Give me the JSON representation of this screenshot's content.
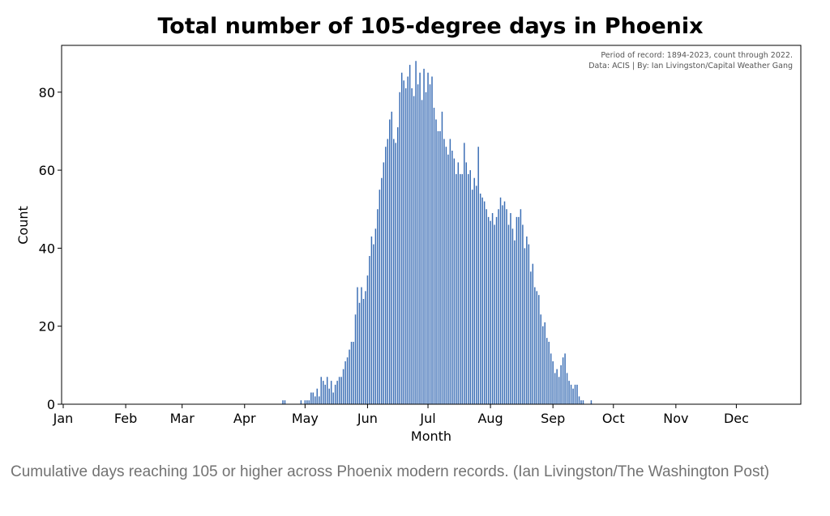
{
  "chart_data": {
    "type": "bar",
    "title": "Total number of 105-degree days in Phoenix",
    "annotation_lines": [
      "Period of record: 1894-2023, count through 2022.",
      "Data: ACIS | By: Ian Livingston/Capital Weather Gang"
    ],
    "xlabel": "Month",
    "ylabel": "Count",
    "ylim": [
      0,
      92
    ],
    "yticks": [
      0,
      20,
      40,
      60,
      80
    ],
    "xlim": [
      1,
      367
    ],
    "xticks": [
      {
        "day": 1,
        "label": "Jan"
      },
      {
        "day": 32,
        "label": "Feb"
      },
      {
        "day": 60,
        "label": "Mar"
      },
      {
        "day": 91,
        "label": "Apr"
      },
      {
        "day": 121,
        "label": "May"
      },
      {
        "day": 152,
        "label": "Jun"
      },
      {
        "day": 182,
        "label": "Jul"
      },
      {
        "day": 213,
        "label": "Aug"
      },
      {
        "day": 244,
        "label": "Sep"
      },
      {
        "day": 274,
        "label": "Oct"
      },
      {
        "day": 305,
        "label": "Nov"
      },
      {
        "day": 335,
        "label": "Dec"
      }
    ],
    "grid": false,
    "bar_color": "#3b6eb5",
    "series": [
      {
        "start_day": 110,
        "values": [
          1,
          1,
          0,
          0,
          0,
          0,
          0,
          0,
          0,
          1,
          0,
          1,
          1,
          1,
          3,
          3,
          2,
          4,
          2,
          7,
          6,
          5,
          7,
          4,
          6,
          3,
          5,
          6,
          7,
          7,
          9,
          11,
          12,
          14,
          16,
          16,
          23,
          30,
          26,
          30,
          27,
          29,
          33,
          38,
          43,
          41,
          45,
          50,
          55,
          58,
          62,
          66,
          68,
          73,
          75,
          68,
          67,
          71,
          80,
          85,
          83,
          81,
          84,
          87,
          81,
          79,
          88,
          82,
          85,
          78,
          86,
          80,
          85,
          82,
          84,
          76,
          73,
          70,
          70,
          75,
          68,
          66,
          64,
          68,
          65,
          63,
          59,
          62,
          59,
          59,
          67,
          62,
          59,
          60,
          55,
          58,
          56,
          66,
          54,
          53,
          52,
          50,
          48,
          47,
          49,
          46,
          48,
          50,
          53,
          51,
          52,
          50,
          46,
          49,
          45,
          42,
          48,
          48,
          50,
          46,
          40,
          43,
          41,
          34,
          36,
          30,
          29,
          28,
          23,
          20,
          21,
          17,
          16,
          13,
          11,
          8,
          9,
          7,
          10,
          12,
          13,
          8,
          6,
          5,
          4,
          5,
          5,
          2,
          1,
          1,
          0,
          0,
          0,
          1
        ]
      }
    ]
  },
  "caption": "Cumulative days reaching 105 or higher across Phoenix modern records. (Ian Livingston/The Washington Post)"
}
